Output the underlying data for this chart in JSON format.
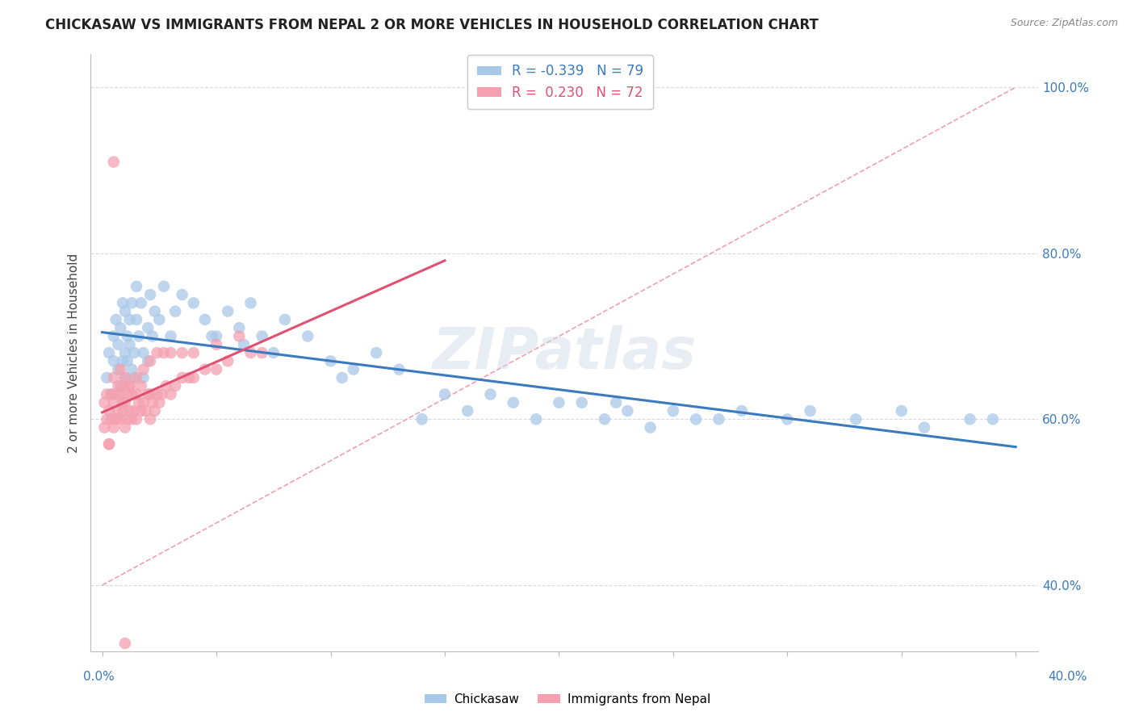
{
  "title": "CHICKASAW VS IMMIGRANTS FROM NEPAL 2 OR MORE VEHICLES IN HOUSEHOLD CORRELATION CHART",
  "source": "Source: ZipAtlas.com",
  "ylabel": "2 or more Vehicles in Household",
  "xlim": [
    -0.5,
    41.0
  ],
  "ylim": [
    32.0,
    104.0
  ],
  "yticks": [
    40.0,
    60.0,
    80.0,
    100.0
  ],
  "ytick_labels": [
    "40.0%",
    "60.0%",
    "80.0%",
    "100.0%"
  ],
  "blue_color": "#a8c8e8",
  "pink_color": "#f4a0b0",
  "blue_line_color": "#3a7abf",
  "pink_line_color": "#e05070",
  "diag_line_color": "#f0a0b0",
  "diag_line_style": "--",
  "legend_blue_R": "-0.339",
  "legend_blue_N": "79",
  "legend_pink_R": "0.230",
  "legend_pink_N": "72",
  "watermark": "ZIPatlas",
  "grid_color": "#d8d8e8",
  "blue_scatter_x": [
    0.2,
    0.3,
    0.4,
    0.5,
    0.5,
    0.6,
    0.7,
    0.7,
    0.8,
    0.8,
    0.9,
    0.9,
    1.0,
    1.0,
    1.0,
    1.1,
    1.1,
    1.2,
    1.2,
    1.3,
    1.3,
    1.4,
    1.4,
    1.5,
    1.5,
    1.6,
    1.7,
    1.8,
    1.8,
    2.0,
    2.0,
    2.1,
    2.2,
    2.3,
    2.5,
    2.7,
    3.0,
    3.2,
    3.5,
    4.0,
    4.5,
    5.0,
    5.5,
    6.0,
    6.5,
    7.0,
    8.0,
    9.0,
    10.0,
    11.0,
    12.0,
    13.0,
    14.0,
    15.0,
    16.0,
    17.0,
    18.0,
    19.0,
    20.0,
    21.0,
    22.0,
    23.0,
    24.0,
    25.0,
    26.0,
    27.0,
    28.0,
    30.0,
    31.0,
    33.0,
    35.0,
    36.0,
    38.0,
    39.0,
    4.8,
    6.2,
    7.5,
    10.5,
    22.5
  ],
  "blue_scatter_y": [
    65,
    68,
    63,
    70,
    67,
    72,
    66,
    69,
    64,
    71,
    67,
    74,
    68,
    65,
    73,
    70,
    67,
    72,
    69,
    66,
    74,
    68,
    65,
    72,
    76,
    70,
    74,
    68,
    65,
    71,
    67,
    75,
    70,
    73,
    72,
    76,
    70,
    73,
    75,
    74,
    72,
    70,
    73,
    71,
    74,
    70,
    72,
    70,
    67,
    66,
    68,
    66,
    60,
    63,
    61,
    63,
    62,
    60,
    62,
    62,
    60,
    61,
    59,
    61,
    60,
    60,
    61,
    60,
    61,
    60,
    61,
    59,
    60,
    60,
    70,
    69,
    68,
    65,
    62
  ],
  "pink_scatter_x": [
    0.1,
    0.1,
    0.2,
    0.2,
    0.3,
    0.3,
    0.4,
    0.4,
    0.5,
    0.5,
    0.5,
    0.6,
    0.6,
    0.7,
    0.7,
    0.8,
    0.8,
    0.8,
    0.9,
    0.9,
    1.0,
    1.0,
    1.0,
    1.1,
    1.1,
    1.2,
    1.2,
    1.3,
    1.3,
    1.4,
    1.5,
    1.5,
    1.6,
    1.7,
    1.7,
    1.8,
    1.9,
    2.0,
    2.1,
    2.1,
    2.2,
    2.3,
    2.4,
    2.5,
    2.6,
    2.8,
    3.0,
    3.2,
    3.5,
    3.8,
    4.0,
    4.5,
    5.0,
    5.5,
    6.5,
    7.0,
    0.3,
    0.6,
    0.9,
    1.2,
    1.5,
    1.8,
    2.1,
    2.4,
    2.7,
    3.0,
    3.5,
    4.0,
    5.0,
    6.0,
    0.5,
    1.0
  ],
  "pink_scatter_y": [
    59,
    62,
    60,
    63,
    57,
    61,
    60,
    63,
    59,
    62,
    65,
    60,
    63,
    61,
    64,
    60,
    63,
    66,
    61,
    64,
    59,
    62,
    65,
    60,
    63,
    61,
    64,
    60,
    63,
    61,
    60,
    63,
    62,
    61,
    64,
    62,
    61,
    63,
    60,
    63,
    62,
    61,
    63,
    62,
    63,
    64,
    63,
    64,
    65,
    65,
    65,
    66,
    66,
    67,
    68,
    68,
    57,
    60,
    62,
    64,
    65,
    66,
    67,
    68,
    68,
    68,
    68,
    68,
    69,
    70,
    91,
    33
  ]
}
